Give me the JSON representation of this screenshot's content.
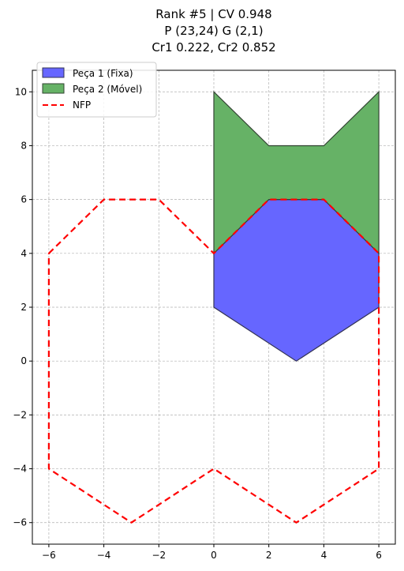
{
  "chart_data": {
    "type": "area",
    "title_lines": [
      "Rank #5 | CV 0.948",
      "P (23,24) G (2,1)",
      "Cr1 0.222, Cr2 0.852"
    ],
    "xlabel": "",
    "ylabel": "",
    "xlim": [
      -6.6,
      6.6
    ],
    "ylim": [
      -6.8,
      10.8
    ],
    "xticks": [
      -6,
      -4,
      -2,
      0,
      2,
      4,
      6
    ],
    "yticks": [
      -6,
      -4,
      -2,
      0,
      2,
      4,
      6,
      8,
      10
    ],
    "grid": true,
    "legend_placement": "top-left",
    "series": [
      {
        "name": "Peça 1 (Fixa)",
        "kind": "polygon",
        "fill": "#6666ff",
        "edge": "#333355",
        "points": [
          [
            0,
            2
          ],
          [
            0,
            4
          ],
          [
            2,
            6
          ],
          [
            4,
            6
          ],
          [
            6,
            4
          ],
          [
            6,
            2
          ],
          [
            3,
            0
          ]
        ]
      },
      {
        "name": "Peça 2 (Móvel)",
        "kind": "polygon",
        "fill": "#66b266",
        "edge": "#334433",
        "points": [
          [
            0,
            4
          ],
          [
            0,
            10
          ],
          [
            2,
            8
          ],
          [
            4,
            8
          ],
          [
            6,
            10
          ],
          [
            6,
            4
          ],
          [
            4,
            6
          ],
          [
            2,
            6
          ]
        ]
      },
      {
        "name": "NFP",
        "kind": "line",
        "color": "#ff0000",
        "dashed": true,
        "points": [
          [
            -6,
            4
          ],
          [
            -4,
            6
          ],
          [
            -2,
            6
          ],
          [
            0,
            4
          ],
          [
            2,
            6
          ],
          [
            4,
            6
          ],
          [
            6,
            4
          ],
          [
            6,
            -4
          ],
          [
            3,
            -6
          ],
          [
            0,
            -4
          ],
          [
            -3,
            -6
          ],
          [
            -6,
            -4
          ],
          [
            -6,
            4
          ]
        ]
      }
    ]
  }
}
